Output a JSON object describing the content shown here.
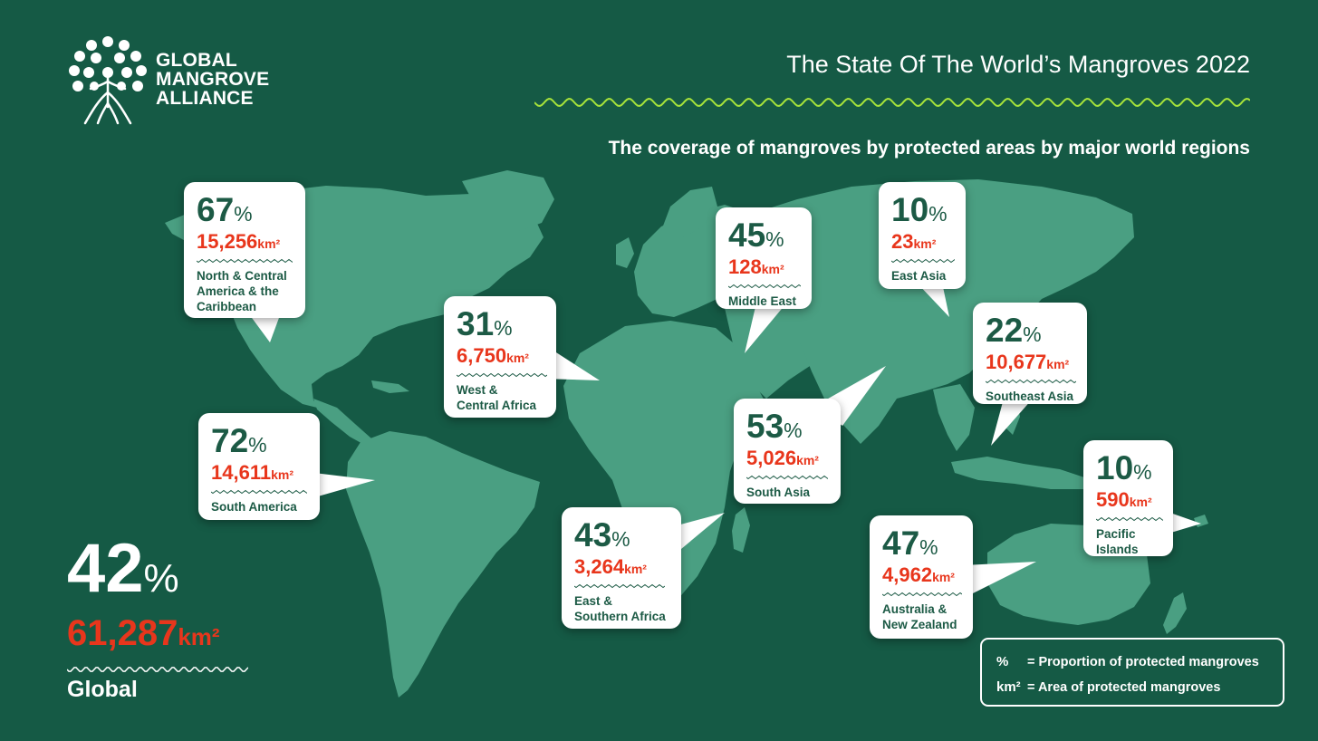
{
  "brand": {
    "line1": "GLOBAL",
    "line2": "MANGROVE",
    "line3": "ALLIANCE"
  },
  "title": "The State Of The World’s Mangroves 2022",
  "subtitle": "The coverage of mangroves by protected areas by major world regions",
  "colors": {
    "background": "#155a45",
    "land": "#4a9f82",
    "accent_red": "#e8361c",
    "accent_lime": "#a7e33a",
    "dark_green_text": "#1c5a45"
  },
  "regions": [
    {
      "pct": "67",
      "area": "15,256",
      "name_lines": [
        "North & Central",
        "America & the",
        "Caribbean"
      ]
    },
    {
      "pct": "72",
      "area": "14,611",
      "name_lines": [
        "South America"
      ]
    },
    {
      "pct": "31",
      "area": "6,750",
      "name_lines": [
        "West &",
        "Central Africa"
      ]
    },
    {
      "pct": "45",
      "area": "128",
      "name_lines": [
        "Middle East"
      ]
    },
    {
      "pct": "10",
      "area": "23",
      "name_lines": [
        "East Asia"
      ]
    },
    {
      "pct": "22",
      "area": "10,677",
      "name_lines": [
        "Southeast Asia"
      ]
    },
    {
      "pct": "53",
      "area": "5,026",
      "name_lines": [
        "South Asia"
      ]
    },
    {
      "pct": "43",
      "area": "3,264",
      "name_lines": [
        "East &",
        "Southern Africa"
      ]
    },
    {
      "pct": "47",
      "area": "4,962",
      "name_lines": [
        "Australia &",
        "New Zealand"
      ]
    },
    {
      "pct": "10",
      "area": "590",
      "name_lines": [
        "Pacific",
        "Islands"
      ]
    }
  ],
  "units": {
    "percent": "%",
    "area": "km²"
  },
  "global": {
    "pct": "42",
    "area": "61,287",
    "label": "Global"
  },
  "legend": {
    "pct_symbol": "%",
    "pct_text": "= Proportion of protected mangroves",
    "area_symbol": "km²",
    "area_text": "= Area of protected mangroves"
  }
}
